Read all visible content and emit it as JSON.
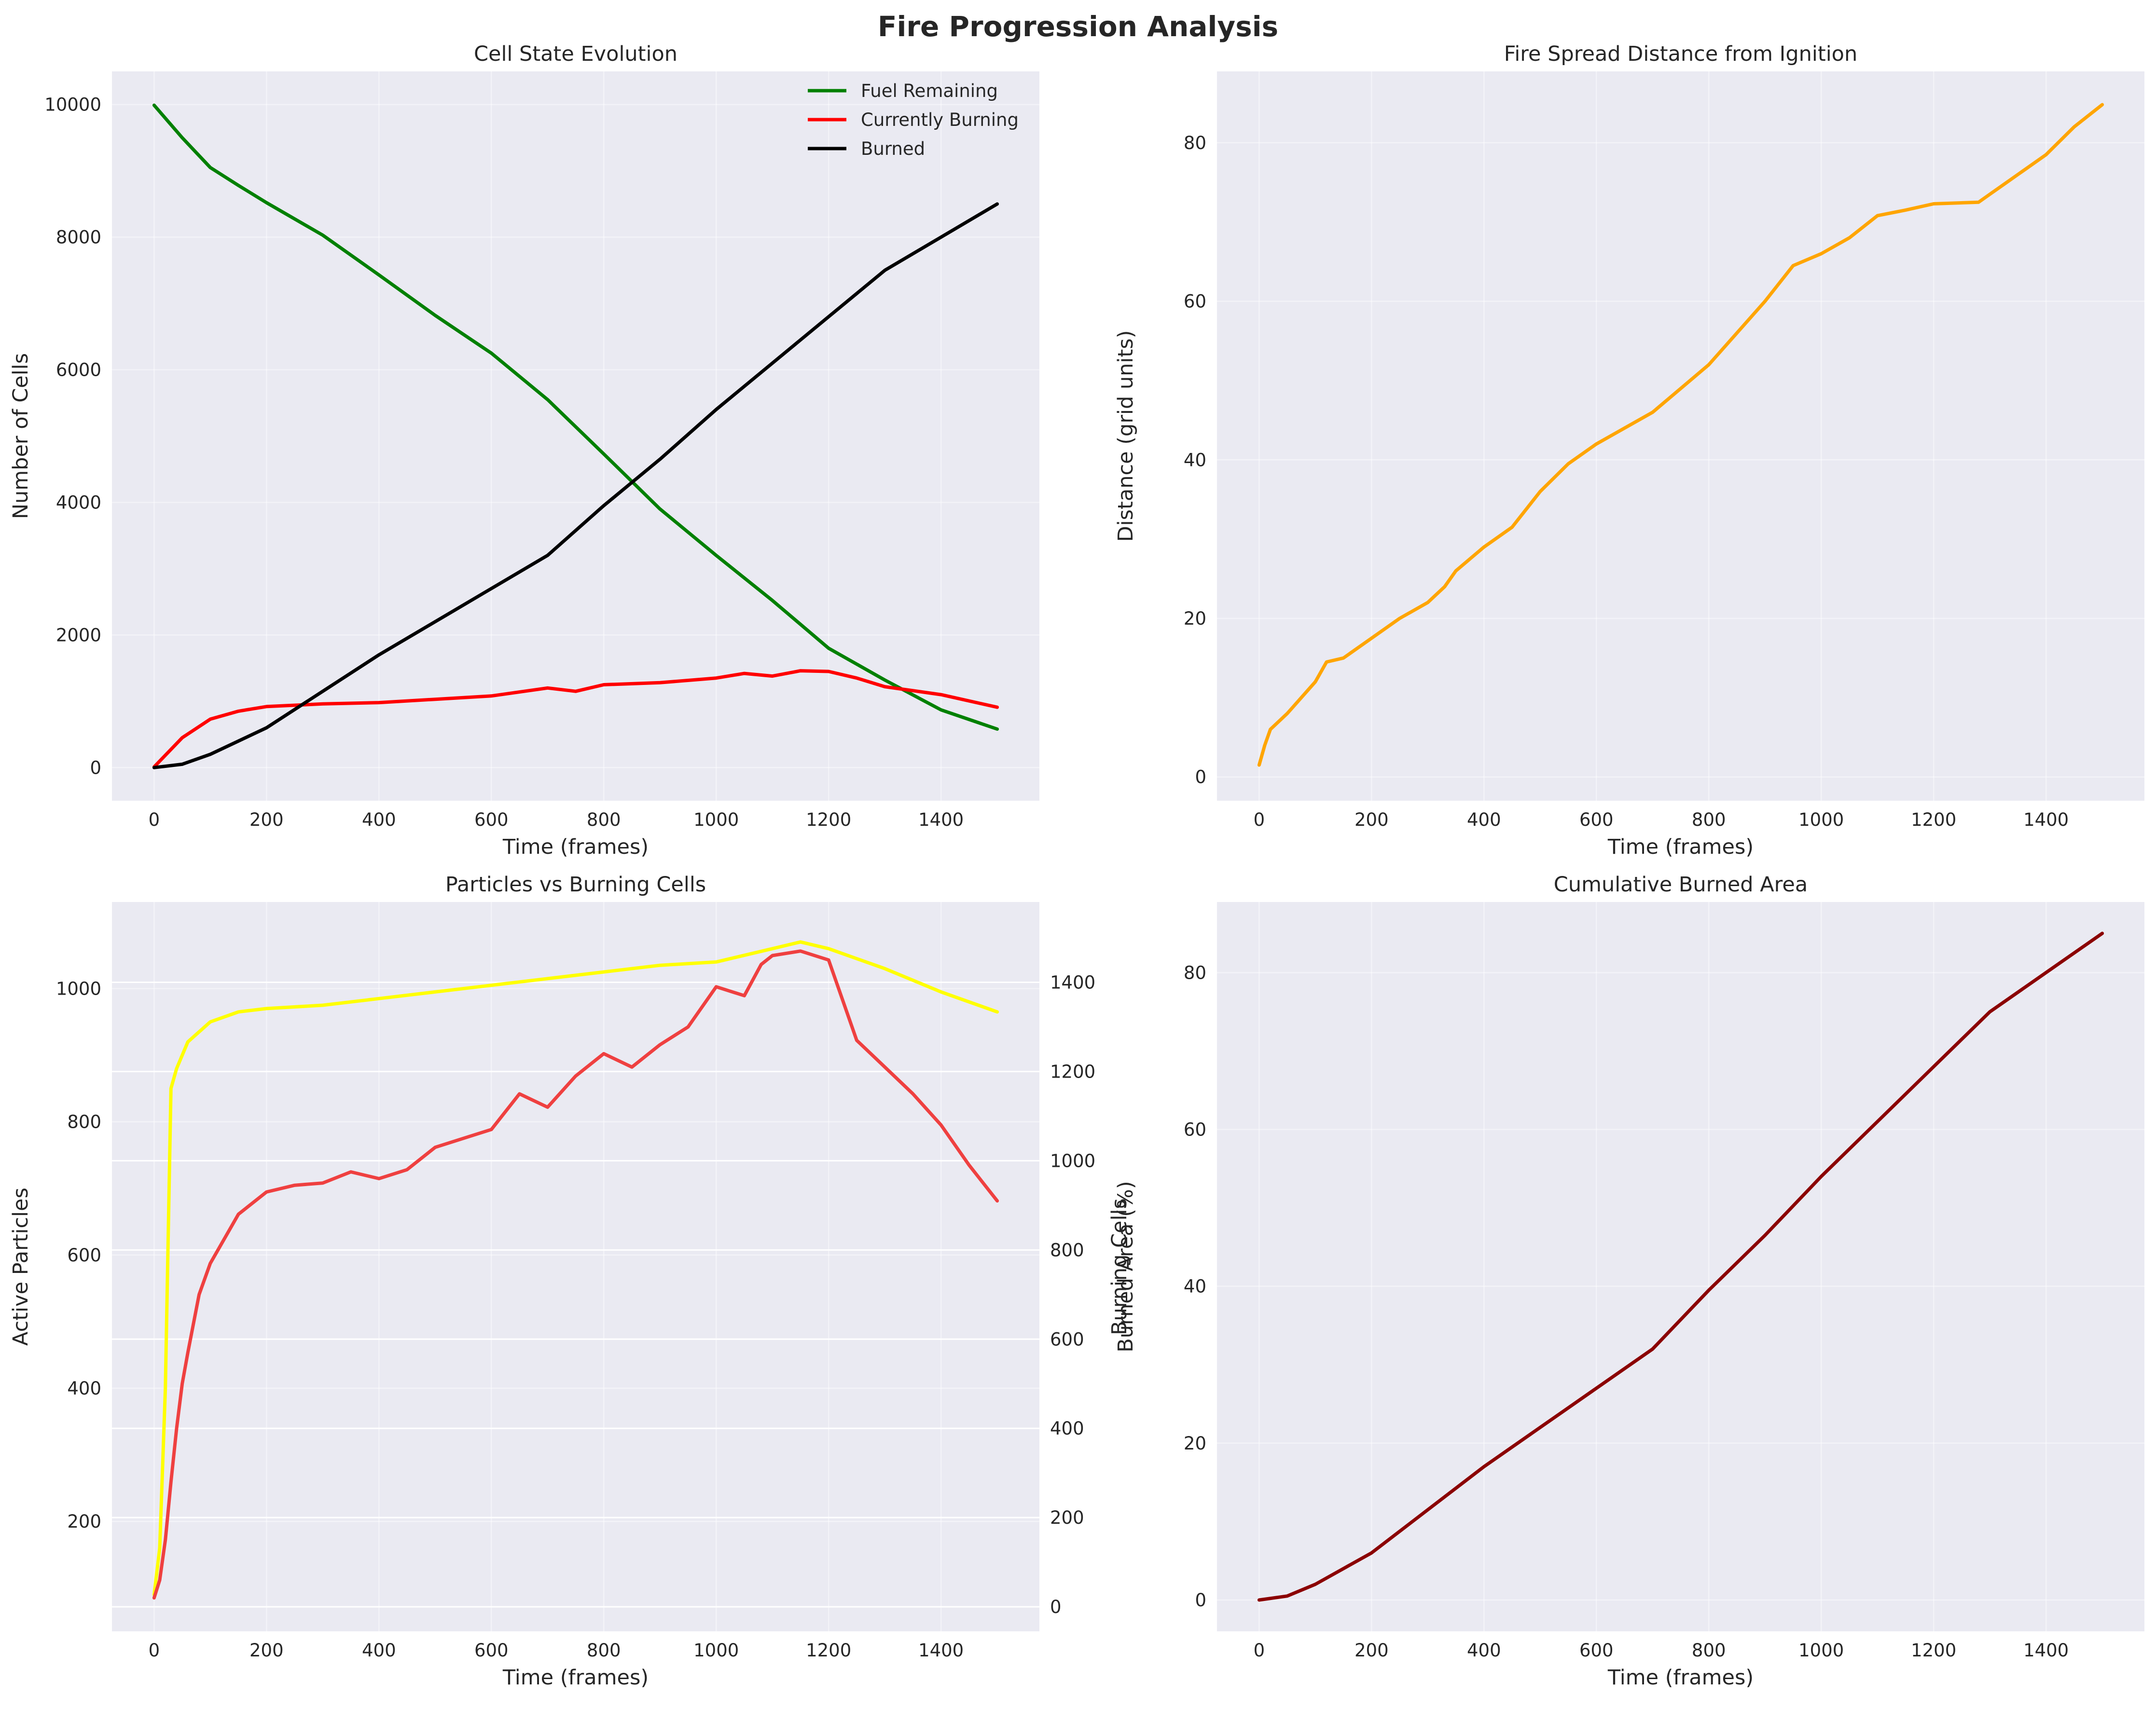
{
  "figure": {
    "title": "Fire Progression Analysis"
  },
  "chart_data": [
    {
      "id": "cell_state",
      "type": "line",
      "title": "Cell State Evolution",
      "xlabel": "Time (frames)",
      "ylabel": "Number of Cells",
      "xlim": [
        -75,
        1575
      ],
      "ylim": [
        -500,
        10500
      ],
      "xticks": [
        0,
        200,
        400,
        600,
        800,
        1000,
        1200,
        1400
      ],
      "yticks": [
        0,
        2000,
        4000,
        6000,
        8000,
        10000
      ],
      "grid": true,
      "legend": "top-right",
      "series": [
        {
          "name": "Fuel Remaining",
          "color": "#008000",
          "x": [
            0,
            50,
            100,
            150,
            200,
            300,
            400,
            500,
            600,
            700,
            800,
            900,
            1000,
            1100,
            1200,
            1300,
            1400,
            1500
          ],
          "y": [
            9990,
            9500,
            9050,
            8780,
            8520,
            8030,
            7430,
            6820,
            6250,
            5550,
            4730,
            3900,
            3200,
            2520,
            1800,
            1320,
            870,
            580
          ]
        },
        {
          "name": "Currently Burning",
          "color": "#ff0000",
          "x": [
            0,
            50,
            100,
            150,
            200,
            300,
            400,
            500,
            600,
            700,
            750,
            800,
            900,
            1000,
            1050,
            1100,
            1150,
            1200,
            1250,
            1300,
            1400,
            1500
          ],
          "y": [
            10,
            450,
            730,
            850,
            920,
            960,
            980,
            1030,
            1080,
            1200,
            1150,
            1250,
            1280,
            1350,
            1420,
            1380,
            1460,
            1450,
            1350,
            1220,
            1100,
            910
          ]
        },
        {
          "name": "Burned",
          "color": "#000000",
          "x": [
            0,
            50,
            100,
            150,
            200,
            300,
            400,
            500,
            600,
            700,
            800,
            900,
            1000,
            1100,
            1200,
            1300,
            1400,
            1500
          ],
          "y": [
            0,
            50,
            200,
            400,
            600,
            1150,
            1700,
            2200,
            2700,
            3200,
            3950,
            4650,
            5400,
            6100,
            6800,
            7500,
            8000,
            8500
          ]
        }
      ]
    },
    {
      "id": "spread_distance",
      "type": "line",
      "title": "Fire Spread Distance from Ignition",
      "xlabel": "Time (frames)",
      "ylabel": "Distance (grid units)",
      "xlim": [
        -75,
        1575
      ],
      "ylim": [
        -3,
        89
      ],
      "xticks": [
        0,
        200,
        400,
        600,
        800,
        1000,
        1200,
        1400
      ],
      "yticks": [
        0,
        20,
        40,
        60,
        80
      ],
      "grid": true,
      "series": [
        {
          "name": "",
          "color": "#ffa500",
          "x": [
            0,
            10,
            20,
            50,
            100,
            120,
            150,
            200,
            250,
            300,
            330,
            350,
            400,
            450,
            500,
            550,
            600,
            650,
            700,
            750,
            800,
            850,
            900,
            950,
            1000,
            1050,
            1100,
            1150,
            1200,
            1280,
            1300,
            1350,
            1400,
            1450,
            1500
          ],
          "y": [
            1.5,
            4,
            6,
            8,
            12,
            14.5,
            15,
            17.5,
            20,
            22,
            24,
            26,
            29,
            31.5,
            36,
            39.5,
            42,
            44,
            46,
            49,
            52,
            56,
            60,
            64.5,
            66,
            68,
            70.8,
            71.5,
            72.3,
            72.5,
            73.5,
            76,
            78.5,
            82,
            84.8
          ]
        }
      ]
    },
    {
      "id": "particles_vs_burning",
      "type": "line",
      "title": "Particles vs Burning Cells",
      "xlabel": "Time (frames)",
      "ylabel": "Active Particles",
      "ylabel_right": "Burning Cells",
      "xlim": [
        -75,
        1575
      ],
      "ylim": [
        35,
        1130
      ],
      "ylim_right": [
        -55,
        1580
      ],
      "xticks": [
        0,
        200,
        400,
        600,
        800,
        1000,
        1200,
        1400
      ],
      "yticks": [
        200,
        400,
        600,
        800,
        1000
      ],
      "yticks_right": [
        0,
        200,
        400,
        600,
        800,
        1000,
        1200,
        1400
      ],
      "grid": true,
      "series": [
        {
          "name": "",
          "axis": "left",
          "color": "#ffff00",
          "x": [
            0,
            10,
            20,
            30,
            40,
            60,
            100,
            150,
            200,
            300,
            400,
            500,
            600,
            700,
            800,
            900,
            1000,
            1100,
            1150,
            1200,
            1300,
            1400,
            1500
          ],
          "y": [
            90,
            160,
            400,
            850,
            880,
            920,
            950,
            965,
            970,
            975,
            985,
            995,
            1005,
            1015,
            1025,
            1035,
            1040,
            1060,
            1070,
            1060,
            1030,
            995,
            965
          ]
        },
        {
          "name": "",
          "axis": "right",
          "color": "#ef4040",
          "x": [
            0,
            10,
            20,
            30,
            40,
            50,
            60,
            80,
            100,
            150,
            200,
            250,
            300,
            350,
            400,
            450,
            500,
            550,
            600,
            650,
            700,
            750,
            800,
            850,
            900,
            950,
            1000,
            1050,
            1080,
            1100,
            1150,
            1200,
            1250,
            1300,
            1350,
            1400,
            1450,
            1500
          ],
          "y": [
            20,
            60,
            150,
            280,
            400,
            500,
            570,
            700,
            770,
            880,
            930,
            945,
            950,
            975,
            960,
            980,
            1030,
            1050,
            1070,
            1150,
            1120,
            1190,
            1240,
            1210,
            1260,
            1300,
            1390,
            1370,
            1440,
            1460,
            1470,
            1450,
            1270,
            1210,
            1150,
            1080,
            990,
            910
          ]
        }
      ]
    },
    {
      "id": "cumulative_burned",
      "type": "line",
      "title": "Cumulative Burned Area",
      "xlabel": "Time (frames)",
      "ylabel": "Burned Area (%)",
      "xlim": [
        -75,
        1575
      ],
      "ylim": [
        -4,
        89
      ],
      "xticks": [
        0,
        200,
        400,
        600,
        800,
        1000,
        1200,
        1400
      ],
      "yticks": [
        0,
        20,
        40,
        60,
        80
      ],
      "grid": true,
      "series": [
        {
          "name": "",
          "color": "#8b0000",
          "x": [
            0,
            50,
            100,
            150,
            200,
            300,
            400,
            500,
            600,
            700,
            800,
            900,
            1000,
            1100,
            1200,
            1300,
            1400,
            1500
          ],
          "y": [
            0,
            0.5,
            2,
            4,
            6,
            11.5,
            17,
            22,
            27,
            32,
            39.5,
            46.5,
            54,
            61,
            68,
            75,
            80,
            85
          ]
        }
      ]
    }
  ]
}
